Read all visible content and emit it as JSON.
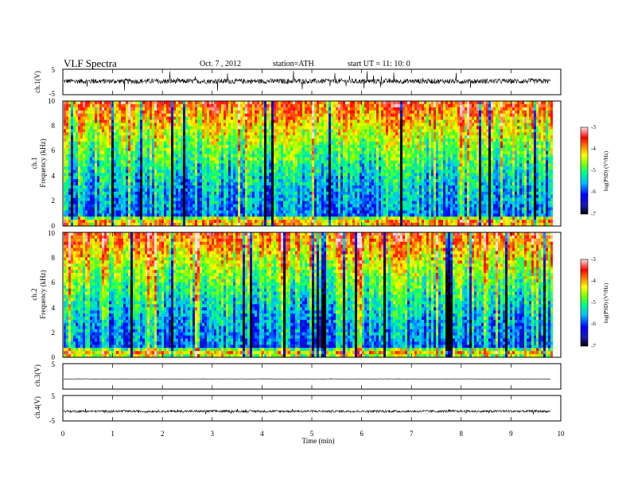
{
  "header": {
    "title": "VLF  Spectra",
    "date": "Oct. 7  , 2012",
    "station": "station=ATH",
    "start": "start  UT  =    11: 10: 0"
  },
  "chart_data": [
    {
      "type": "line",
      "ylabel": "ch.1(V)",
      "ylim": [
        -5,
        5
      ],
      "y_ticks": [
        "5",
        "-5"
      ],
      "baseline": 0.3,
      "noise_amplitude": 1.0,
      "spike_amplitude": 3.4
    },
    {
      "type": "heatmap",
      "ylabel": "ch.1\nFrequency  (kHz)",
      "ylabel_lines": [
        "ch.1",
        "Frequency  (kHz)"
      ],
      "ylim": [
        0,
        10
      ],
      "y_ticks": [
        "0",
        "2",
        "4",
        "6",
        "8",
        "10"
      ],
      "colorbar": {
        "label": "log(PSD) (V²/Hz)",
        "range": [
          -7,
          -3
        ],
        "ticks": [
          "-3",
          "-4",
          "-5",
          "-6",
          "-7"
        ]
      }
    },
    {
      "type": "heatmap",
      "ylabel": "ch.2\nFrequency  (kHz)",
      "ylabel_lines": [
        "ch.2",
        "Frequency  (kHz)"
      ],
      "ylim": [
        0,
        10
      ],
      "y_ticks": [
        "0",
        "2",
        "4",
        "6",
        "8",
        "10"
      ],
      "colorbar": {
        "label": "log(PSD) (V²/Hz)",
        "range": [
          -7,
          -3
        ],
        "ticks": [
          "-3",
          "-4",
          "-5",
          "-6",
          "-7"
        ]
      }
    },
    {
      "type": "line",
      "ylabel": "ch.3(V)",
      "ylim": [
        -5,
        5
      ],
      "y_ticks": [
        "5"
      ],
      "baseline": -1.0,
      "noise_amplitude": 0.05,
      "spike_amplitude": 0.2
    },
    {
      "type": "line",
      "ylabel": "ch.4(V)",
      "ylim": [
        -5,
        5
      ],
      "y_ticks": [
        "5",
        "-5"
      ],
      "baseline": -1.2,
      "noise_amplitude": 0.45,
      "spike_amplitude": 0.9
    }
  ],
  "x_axis": {
    "label": "Time  (min)",
    "range": [
      0,
      10
    ],
    "ticks": [
      "0",
      "1",
      "2",
      "3",
      "4",
      "5",
      "6",
      "7",
      "8",
      "9",
      "10"
    ],
    "data_end": 9.8
  }
}
